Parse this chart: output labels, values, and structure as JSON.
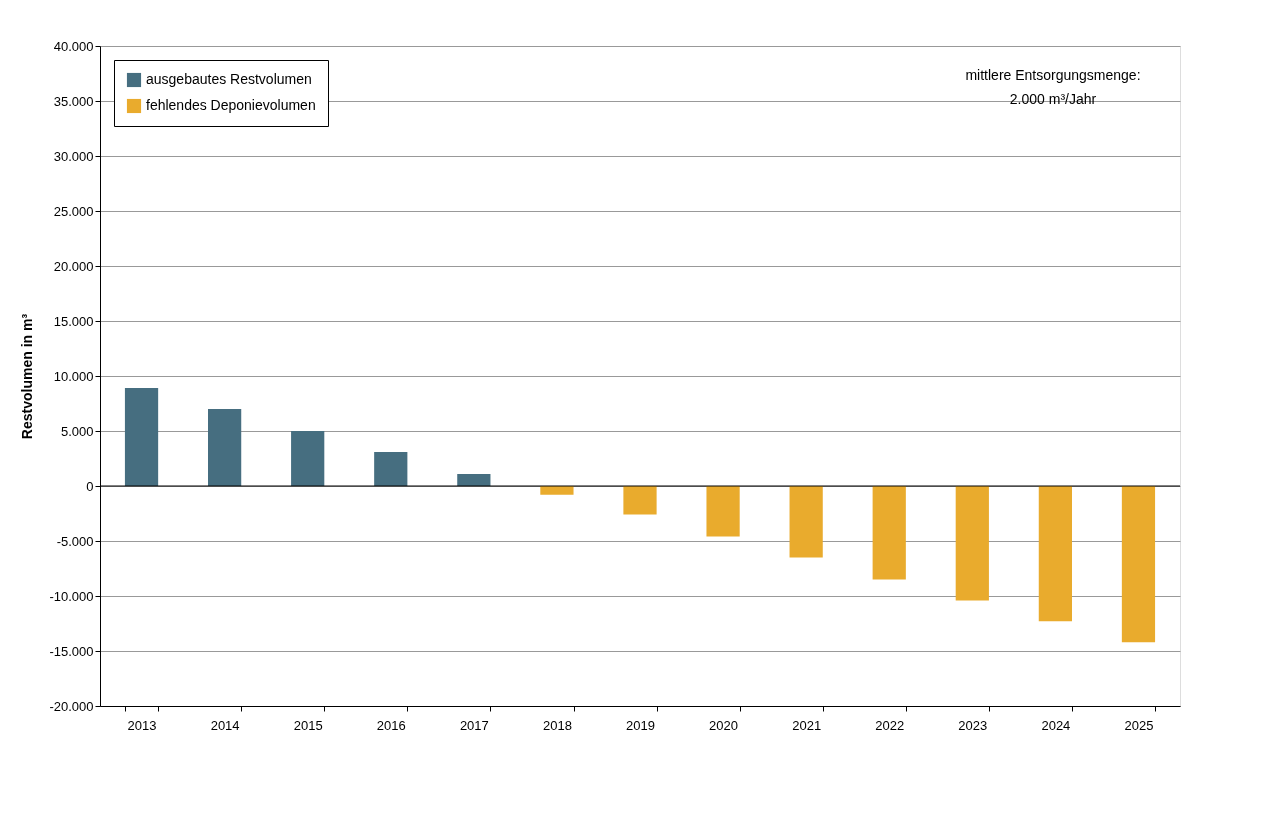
{
  "chart_data": {
    "type": "bar",
    "ylabel": "Restvolumen in m³",
    "categories": [
      "2013",
      "2014",
      "2015",
      "2016",
      "2017",
      "2018",
      "2019",
      "2020",
      "2021",
      "2022",
      "2023",
      "2024",
      "2025"
    ],
    "series": [
      {
        "name": "ausgebautes Restvolumen",
        "color": "#466e80",
        "values": [
          8900,
          7000,
          5000,
          3100,
          1100,
          null,
          null,
          null,
          null,
          null,
          null,
          null,
          null
        ]
      },
      {
        "name": "fehlendes Deponievolumen",
        "color": "#e9ab2d",
        "values": [
          null,
          null,
          null,
          null,
          null,
          -800,
          -2600,
          -4600,
          -6500,
          -8500,
          -10400,
          -12300,
          -14200
        ]
      }
    ],
    "ylim": [
      -20000,
      40000
    ],
    "yticks": [
      {
        "value": -20000,
        "label": "-20.000"
      },
      {
        "value": -15000,
        "label": "-15.000"
      },
      {
        "value": -10000,
        "label": "-10.000"
      },
      {
        "value": -5000,
        "label": "-5.000"
      },
      0,
      {
        "value": 5000,
        "label": "5.000"
      },
      {
        "value": 10000,
        "label": "10.000"
      },
      {
        "value": 15000,
        "label": "15.000"
      },
      {
        "value": 20000,
        "label": "20.000"
      },
      {
        "value": 25000,
        "label": "25.000"
      },
      {
        "value": 30000,
        "label": "30.000"
      },
      {
        "value": 35000,
        "label": "35.000"
      },
      {
        "value": 40000,
        "label": "40.000"
      }
    ],
    "grid": "y",
    "legend": "top left",
    "annotations": [
      "mittlere Entsorgungsmenge:",
      "2.000 m³/Jahr"
    ]
  }
}
